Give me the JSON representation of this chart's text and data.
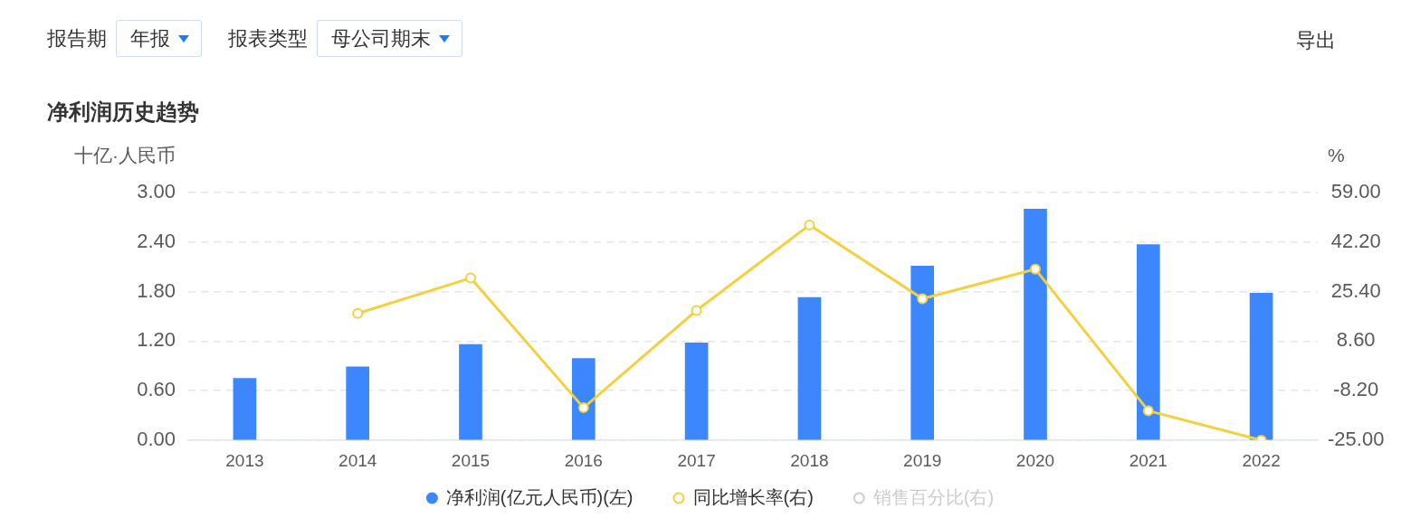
{
  "chart_data": {
    "type": "bar",
    "title": "净利润历史趋势",
    "ylabel": "十亿·人民币",
    "y2label": "%",
    "categories": [
      "2013",
      "2014",
      "2015",
      "2016",
      "2017",
      "2018",
      "2019",
      "2020",
      "2021",
      "2022"
    ],
    "series": [
      {
        "name": "净利润(亿元人民币)(左)",
        "color": "#3c87fd",
        "values": [
          0.75,
          0.89,
          1.16,
          0.99,
          1.18,
          1.73,
          2.11,
          2.8,
          2.37,
          1.78
        ]
      },
      {
        "name": "同比增长率(右)",
        "type": "line",
        "axis": "y2",
        "color": "#f3d03e",
        "values": [
          null,
          18,
          30,
          -14,
          19,
          48,
          23,
          33,
          -15,
          -25
        ]
      },
      {
        "name": "销售百分比(右)",
        "type": "line",
        "axis": "y2",
        "color": "#cccccc",
        "values": [
          null,
          null,
          null,
          null,
          null,
          null,
          null,
          null,
          null,
          null
        ]
      }
    ],
    "ylim": [
      0,
      3
    ],
    "yticks": [
      {
        "value": 0,
        "label": "0.00"
      },
      {
        "value": 0.6,
        "label": "0.60"
      },
      {
        "value": 1.2,
        "label": "1.20"
      },
      {
        "value": 1.8,
        "label": "1.80"
      },
      {
        "value": 2.4,
        "label": "2.40"
      },
      {
        "value": 3,
        "label": "3.00"
      }
    ],
    "y2lim": [
      -25,
      59
    ],
    "y2ticks": [
      {
        "value": -25,
        "label": "-25.00"
      },
      {
        "value": -8.2,
        "label": "-8.20"
      },
      {
        "value": 8.6,
        "label": "8.60"
      },
      {
        "value": 25.4,
        "label": "25.40"
      },
      {
        "value": 42.2,
        "label": "42.20"
      },
      {
        "value": 59,
        "label": "59.00"
      }
    ],
    "grid": "y",
    "legend": "bottom",
    "marker": "circle",
    "annotations": [
      "报告期",
      "年报",
      "报表类型",
      "母公司期末",
      "导出"
    ]
  }
}
